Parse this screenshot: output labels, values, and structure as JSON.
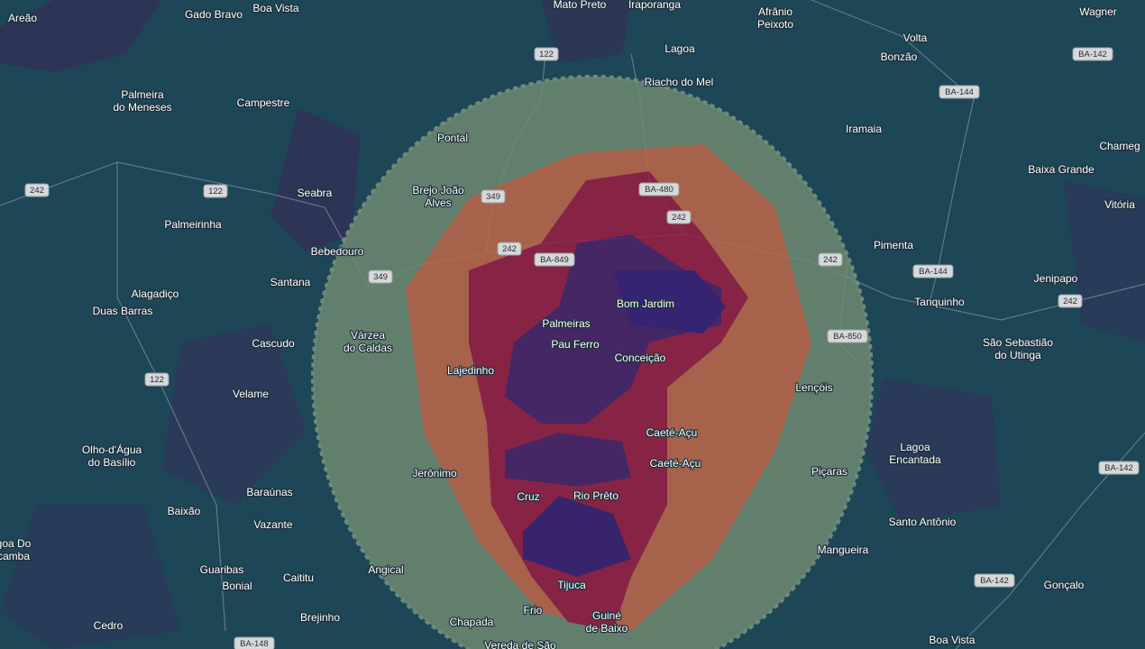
{
  "places": [
    {
      "lines": [
        "Areão"
      ]
    },
    {
      "lines": [
        "Gado Bravo"
      ]
    },
    {
      "lines": [
        "Boa Vista"
      ]
    },
    {
      "lines": [
        "Mato Preto"
      ]
    },
    {
      "lines": [
        "Iraporanga"
      ]
    },
    {
      "lines": [
        "Afrânio",
        "Peixoto"
      ]
    },
    {
      "lines": [
        "Wagner"
      ]
    },
    {
      "lines": [
        "Lagoa"
      ]
    },
    {
      "lines": [
        "Volta"
      ]
    },
    {
      "lines": [
        "Bonzão"
      ]
    },
    {
      "lines": [
        "Riacho do Mel"
      ]
    },
    {
      "lines": [
        "Palmeira",
        "do Meneses"
      ]
    },
    {
      "lines": [
        "Campestre"
      ]
    },
    {
      "lines": [
        "Iramaia"
      ]
    },
    {
      "lines": [
        "Pontal"
      ]
    },
    {
      "lines": [
        "Chameg"
      ]
    },
    {
      "lines": [
        "Baixa Grande"
      ]
    },
    {
      "lines": [
        "Seabra"
      ]
    },
    {
      "lines": [
        "Brejo João",
        "Alves"
      ]
    },
    {
      "lines": [
        "Vitória"
      ]
    },
    {
      "lines": [
        "Palmeirinha"
      ]
    },
    {
      "lines": [
        "Pimenta"
      ]
    },
    {
      "lines": [
        "Bebedouro"
      ]
    },
    {
      "lines": [
        "Santana"
      ]
    },
    {
      "lines": [
        "Jenipapo"
      ]
    },
    {
      "lines": [
        "Alagadiço"
      ]
    },
    {
      "lines": [
        "Bom Jardim"
      ]
    },
    {
      "lines": [
        "Tanquinho"
      ]
    },
    {
      "lines": [
        "Duas Barras"
      ]
    },
    {
      "lines": [
        "Palmeiras"
      ]
    },
    {
      "lines": [
        "Cascudo"
      ]
    },
    {
      "lines": [
        "Várzea",
        "do Caldas"
      ]
    },
    {
      "lines": [
        "São Sebastião",
        "do Utinga"
      ]
    },
    {
      "lines": [
        "Pau Ferro"
      ]
    },
    {
      "lines": [
        "Conceição"
      ]
    },
    {
      "lines": [
        "Lajedinho"
      ]
    },
    {
      "lines": [
        "Lençóis"
      ]
    },
    {
      "lines": [
        "Velame"
      ]
    },
    {
      "lines": [
        "Caeté-Açu"
      ]
    },
    {
      "lines": [
        "Olho-d'Água",
        "do Basílio"
      ]
    },
    {
      "lines": [
        "Lagoa",
        "Encantada"
      ]
    },
    {
      "lines": [
        "Caeté-Açu"
      ]
    },
    {
      "lines": [
        "Jerônimo"
      ]
    },
    {
      "lines": [
        "Piçaras"
      ]
    },
    {
      "lines": [
        "Baraúnas"
      ]
    },
    {
      "lines": [
        "Cruz"
      ]
    },
    {
      "lines": [
        "Rio Prêto"
      ]
    },
    {
      "lines": [
        "Baixão"
      ]
    },
    {
      "lines": [
        "Santo Antônio"
      ]
    },
    {
      "lines": [
        "Vazante"
      ]
    },
    {
      "lines": [
        "goa Do",
        "camba"
      ]
    },
    {
      "lines": [
        "Mangueira"
      ]
    },
    {
      "lines": [
        "Guaribas"
      ]
    },
    {
      "lines": [
        "Angical"
      ]
    },
    {
      "lines": [
        "Caititu"
      ]
    },
    {
      "lines": [
        "Tijuca"
      ]
    },
    {
      "lines": [
        "Gonçalo"
      ]
    },
    {
      "lines": [
        "Bonial"
      ]
    },
    {
      "lines": [
        "Brejinho"
      ]
    },
    {
      "lines": [
        "Frio"
      ]
    },
    {
      "lines": [
        "Guiné",
        "de Baixo"
      ]
    },
    {
      "lines": [
        "Chapada"
      ]
    },
    {
      "lines": [
        "Cedro"
      ]
    },
    {
      "lines": [
        "Boa Vista"
      ]
    },
    {
      "lines": [
        "Vereda de São"
      ]
    }
  ],
  "road_shields": [
    "122",
    "BA-142",
    "BA-144",
    "242",
    "122",
    "349",
    "BA-480",
    "242",
    "242",
    "BA-849",
    "242",
    "BA-144",
    "349",
    "242",
    "BA-850",
    "122",
    "BA-142",
    "BA-142",
    "BA-148"
  ]
}
